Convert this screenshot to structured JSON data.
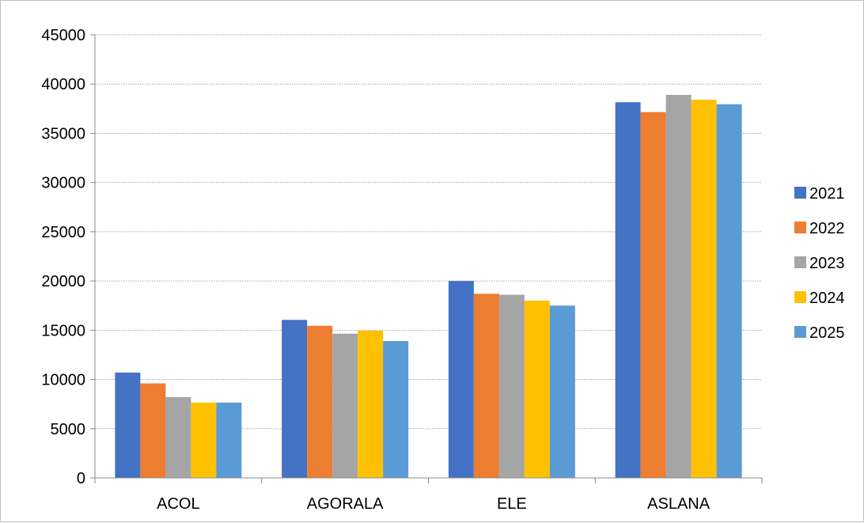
{
  "chart_data": {
    "type": "bar",
    "title": "",
    "xlabel": "",
    "ylabel": "",
    "categories": [
      "ACOL",
      "AGORALA",
      "ELE",
      "ASLANA"
    ],
    "series": [
      {
        "name": "2021",
        "color": "#4472C4",
        "values": [
          10700,
          16050,
          20000,
          38150
        ]
      },
      {
        "name": "2022",
        "color": "#ED7D31",
        "values": [
          9600,
          15450,
          18700,
          37150
        ]
      },
      {
        "name": "2023",
        "color": "#A5A5A5",
        "values": [
          8200,
          14650,
          18600,
          38900
        ]
      },
      {
        "name": "2024",
        "color": "#FFC000",
        "values": [
          7650,
          14950,
          18000,
          38400
        ]
      },
      {
        "name": "2025",
        "color": "#5B9BD5",
        "values": [
          7650,
          13900,
          17500,
          37950
        ]
      }
    ],
    "ylim": [
      0,
      45000
    ],
    "yticks": [
      0,
      5000,
      10000,
      15000,
      20000,
      25000,
      30000,
      35000,
      40000,
      45000
    ],
    "grid": true,
    "legend_position": "right"
  }
}
